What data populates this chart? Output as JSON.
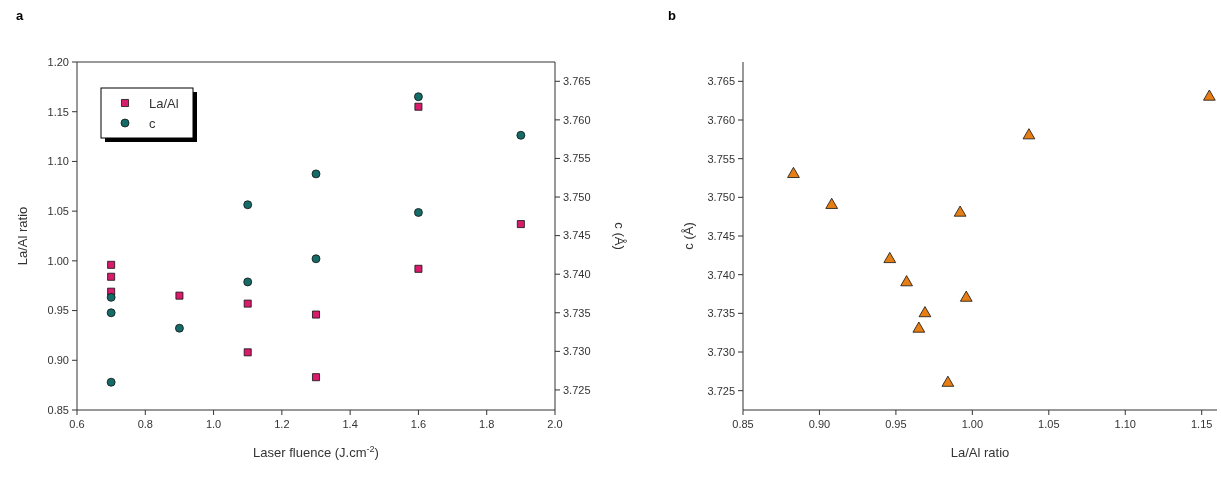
{
  "chart_data": [
    {
      "type": "scatter",
      "title": "a",
      "xlabel": "Laser fluence (J.cm$^{-2}$)",
      "ylabel": "La/Al ratio",
      "y2label": "c (Å)",
      "xlim": [
        0.6,
        2.0
      ],
      "xticks": [
        0.6,
        0.8,
        {
          "value": 1,
          "label": "1.0"
        },
        1.2,
        1.4,
        1.6,
        1.8,
        {
          "value": 2,
          "label": "2.0"
        }
      ],
      "ylim": [
        0.85,
        1.2
      ],
      "yticks": [
        0.85,
        {
          "value": 0.9,
          "label": "0.90"
        },
        0.95,
        {
          "value": 1,
          "label": "1.00"
        },
        1.05,
        {
          "value": 1.1,
          "label": "1.10"
        },
        1.15,
        {
          "value": 1.2,
          "label": "1.20"
        }
      ],
      "y2lim": [
        3.7224,
        3.7675
      ],
      "y2ticks": [
        3.725,
        {
          "value": 3.73,
          "label": "3.730"
        },
        3.735,
        {
          "value": 3.74,
          "label": "3.740"
        },
        3.745,
        {
          "value": 3.75,
          "label": "3.750"
        },
        3.755,
        {
          "value": 3.76,
          "label": "3.760"
        },
        3.765
      ],
      "legend": "top left",
      "series": [
        {
          "name": "La/Al",
          "color": "#d81b6a",
          "marker": "square",
          "x": [
            0.7,
            0.7,
            0.7,
            0.9,
            1.1,
            1.1,
            1.3,
            1.3,
            1.6,
            1.6,
            1.9
          ],
          "values": [
            0.996,
            0.984,
            0.969,
            0.965,
            0.957,
            0.908,
            0.946,
            0.883,
            1.155,
            0.992,
            1.037
          ]
        },
        {
          "name": "c",
          "color": "#156b67",
          "marker": "circle",
          "axis": "y2",
          "x": [
            0.7,
            0.7,
            0.7,
            0.9,
            1.1,
            1.1,
            1.3,
            1.3,
            1.6,
            1.6,
            1.9
          ],
          "values": [
            3.737,
            3.735,
            3.726,
            3.733,
            3.749,
            3.739,
            3.753,
            3.742,
            3.763,
            3.748,
            3.758
          ]
        }
      ]
    },
    {
      "type": "scatter",
      "title": "b",
      "xlabel": "La/Al ratio",
      "ylabel": "c (Å)",
      "xlim": [
        0.85,
        1.16
      ],
      "xticks": [
        0.85,
        {
          "value": 0.9,
          "label": "0.90"
        },
        0.95,
        {
          "value": 1,
          "label": "1.00"
        },
        1.05,
        {
          "value": 1.1,
          "label": "1.10"
        },
        1.15
      ],
      "ylim": [
        3.7225,
        3.7675
      ],
      "yticks": [
        3.725,
        {
          "value": 3.73,
          "label": "3.730"
        },
        3.735,
        {
          "value": 3.74,
          "label": "3.740"
        },
        3.745,
        {
          "value": 3.75,
          "label": "3.750"
        },
        3.755,
        {
          "value": 3.76,
          "label": "3.760"
        },
        3.765
      ],
      "series": [
        {
          "color": "#e67e14",
          "marker": "triangle",
          "x": [
            0.883,
            0.908,
            0.946,
            0.957,
            0.969,
            0.965,
            0.996,
            0.984,
            0.992,
            1.037,
            1.155
          ],
          "values": [
            3.753,
            3.749,
            3.742,
            3.739,
            3.735,
            3.733,
            3.737,
            3.726,
            3.748,
            3.758,
            3.763
          ]
        }
      ]
    }
  ]
}
